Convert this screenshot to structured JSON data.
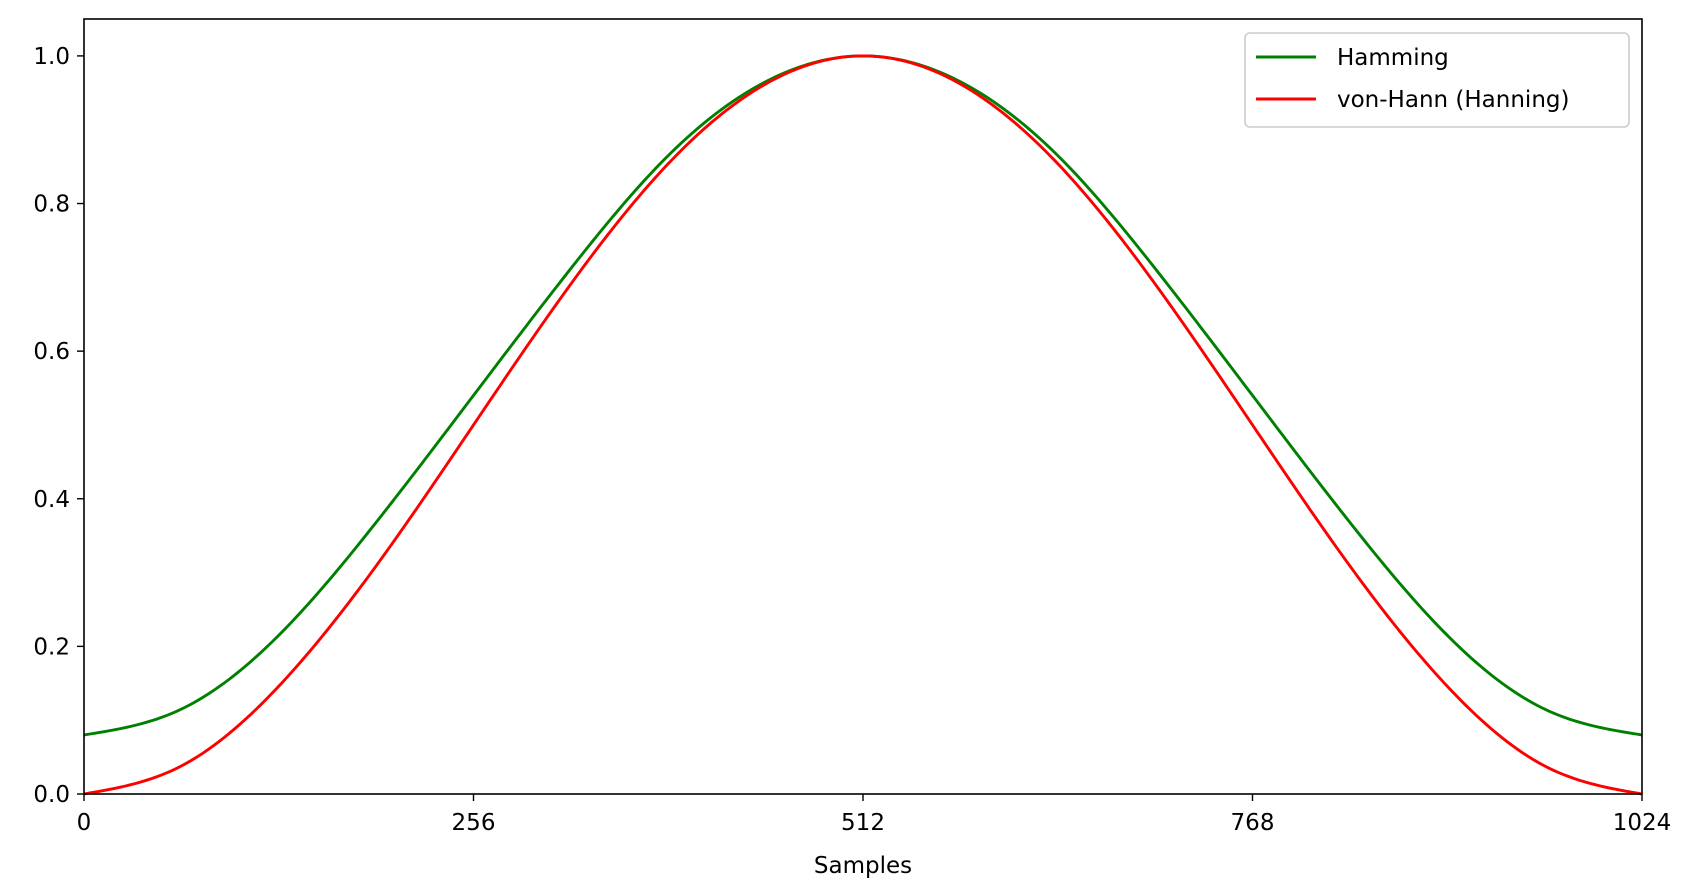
{
  "chart_data": {
    "type": "line",
    "title": "",
    "xlabel": "Samples",
    "ylabel": "",
    "xlim": [
      0,
      1024
    ],
    "ylim": [
      0,
      1.05
    ],
    "x_ticks": [
      0,
      256,
      512,
      768,
      1024
    ],
    "x_tick_labels": [
      "0",
      "256",
      "512",
      "768",
      "1024"
    ],
    "y_ticks": [
      0.0,
      0.2,
      0.4,
      0.6,
      0.8,
      1.0
    ],
    "y_tick_labels": [
      "0.0",
      "0.2",
      "0.4",
      "0.6",
      "0.8",
      "1.0"
    ],
    "grid": false,
    "legend_position": "top-right",
    "x": [
      0,
      64,
      128,
      192,
      256,
      320,
      384,
      448,
      512,
      576,
      640,
      704,
      768,
      832,
      896,
      960,
      1024
    ],
    "series": [
      {
        "name": "Hamming",
        "color": "#008000",
        "values": [
          0.08,
          0.115,
          0.215,
          0.368,
          0.54,
          0.712,
          0.865,
          0.965,
          1.0,
          0.965,
          0.865,
          0.712,
          0.54,
          0.368,
          0.215,
          0.115,
          0.08
        ]
      },
      {
        "name": "von-Hann (Hanning)",
        "color": "#ff0000",
        "values": [
          0.0,
          0.038,
          0.146,
          0.309,
          0.5,
          0.691,
          0.854,
          0.962,
          1.0,
          0.962,
          0.854,
          0.691,
          0.5,
          0.309,
          0.146,
          0.038,
          0.0
        ]
      }
    ]
  }
}
